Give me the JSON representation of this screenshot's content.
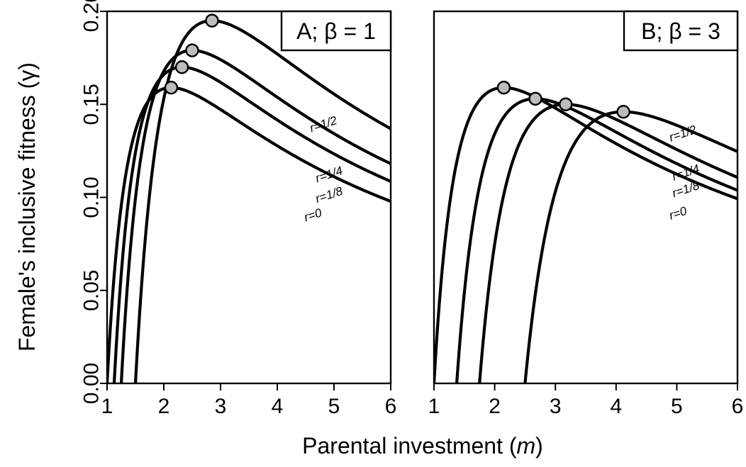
{
  "figure": {
    "xlabel_prefix": "Parental investment (",
    "xlabel_var": "m",
    "xlabel_suffix": ")",
    "ylabel": "Female's inclusive fitness (γ)"
  },
  "chart_data": [
    {
      "type": "line",
      "panel_label": "A; β = 1",
      "beta": 1,
      "xlim": [
        1,
        6
      ],
      "ylim": [
        0,
        0.2
      ],
      "xticks": [
        1,
        2,
        3,
        4,
        5,
        6
      ],
      "yticks": [
        "0.00",
        "0.05",
        "0.10",
        "0.15",
        "0.20"
      ],
      "series": [
        {
          "name": "r=1/2",
          "root": 1.5,
          "peak": [
            2.85,
            0.195
          ]
        },
        {
          "name": "r=1/4",
          "root": 1.25,
          "peak": [
            2.5,
            0.179
          ]
        },
        {
          "name": "r=1/8",
          "root": 1.125,
          "peak": [
            2.32,
            0.17
          ]
        },
        {
          "name": "r=0",
          "root": 1.0,
          "peak": [
            2.13,
            0.159
          ]
        }
      ]
    },
    {
      "type": "line",
      "panel_label": "B; β = 3",
      "beta": 3,
      "xlim": [
        1,
        6
      ],
      "ylim": [
        0,
        0.2
      ],
      "xticks": [
        1,
        2,
        3,
        4,
        5,
        6
      ],
      "yticks": [],
      "series": [
        {
          "name": "r=1/2",
          "root": 2.5,
          "peak": [
            4.12,
            0.146
          ]
        },
        {
          "name": "r=1/4",
          "root": 1.75,
          "peak": [
            3.17,
            0.15
          ]
        },
        {
          "name": "r=1/8",
          "root": 1.375,
          "peak": [
            2.67,
            0.153
          ]
        },
        {
          "name": "r=0",
          "root": 1.0,
          "peak": [
            2.15,
            0.159
          ]
        }
      ]
    }
  ]
}
